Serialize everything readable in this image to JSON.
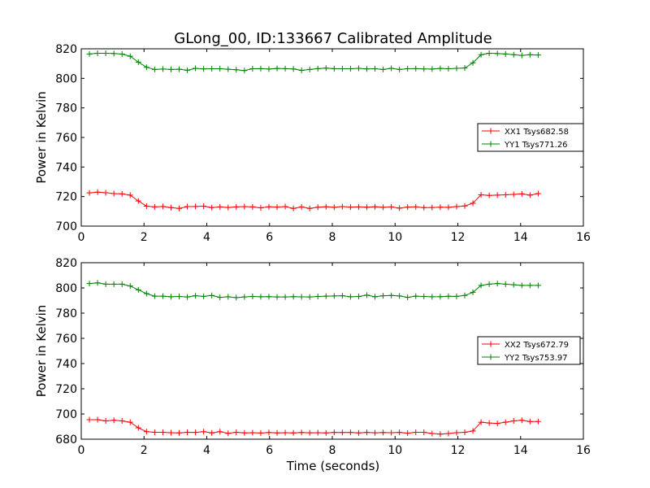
{
  "figure": {
    "title": "GLong_00, ID:133667 Calibrated Amplitude",
    "xlabel": "Time (seconds)"
  },
  "chart_data": [
    {
      "type": "line",
      "ylabel": "Power in Kelvin",
      "xlabel": "",
      "xlim": [
        0,
        16
      ],
      "ylim": [
        700,
        820
      ],
      "xticks": [
        0,
        2,
        4,
        6,
        8,
        10,
        12,
        14,
        16
      ],
      "yticks": [
        700,
        720,
        740,
        760,
        780,
        800,
        820
      ],
      "legend_position": "center-right",
      "x": [
        0.26,
        0.52,
        0.78,
        1.04,
        1.3,
        1.56,
        1.82,
        2.08,
        2.34,
        2.6,
        2.86,
        3.12,
        3.38,
        3.64,
        3.9,
        4.16,
        4.42,
        4.68,
        4.94,
        5.2,
        5.46,
        5.72,
        5.98,
        6.24,
        6.5,
        6.76,
        7.02,
        7.28,
        7.54,
        7.8,
        8.06,
        8.32,
        8.58,
        8.84,
        9.1,
        9.36,
        9.62,
        9.88,
        10.14,
        10.4,
        10.66,
        10.92,
        11.18,
        11.44,
        11.7,
        11.96,
        12.22,
        12.48,
        12.74,
        13.0,
        13.26,
        13.52,
        13.78,
        14.04,
        14.3,
        14.56
      ],
      "series": [
        {
          "name": "XX1 Tsys682.58",
          "color": "#ff0000",
          "values": [
            722.5,
            723.0,
            722.6,
            722.0,
            721.8,
            721.0,
            717.0,
            713.5,
            713.0,
            713.3,
            712.5,
            712.0,
            713.2,
            713.3,
            713.5,
            712.5,
            713.0,
            712.6,
            713.0,
            713.2,
            713.0,
            712.4,
            713.1,
            712.9,
            713.2,
            712.0,
            713.0,
            712.0,
            712.8,
            713.1,
            712.7,
            713.2,
            712.9,
            713.0,
            712.8,
            713.1,
            712.7,
            713.0,
            712.2,
            712.9,
            713.0,
            712.5,
            712.6,
            712.8,
            712.7,
            713.2,
            713.6,
            715.5,
            721.2,
            720.8,
            721.0,
            721.2,
            721.5,
            721.8,
            721.0,
            722.0
          ]
        },
        {
          "name": "YY1 Tsys771.26",
          "color": "#008000",
          "values": [
            816.5,
            817.0,
            817.0,
            816.8,
            816.4,
            815.0,
            811.0,
            807.5,
            806.0,
            806.3,
            806.0,
            806.2,
            805.5,
            806.8,
            806.4,
            806.5,
            806.5,
            806.2,
            805.8,
            805.3,
            806.5,
            806.6,
            806.3,
            806.7,
            806.6,
            806.4,
            805.4,
            806.0,
            806.6,
            806.9,
            806.6,
            806.5,
            806.5,
            806.8,
            806.4,
            806.5,
            806.0,
            806.8,
            806.0,
            806.5,
            806.6,
            806.4,
            806.3,
            806.7,
            806.5,
            806.8,
            807.0,
            810.5,
            816.0,
            817.0,
            816.8,
            816.5,
            816.0,
            815.5,
            816.0,
            815.8
          ]
        }
      ]
    },
    {
      "type": "line",
      "ylabel": "Power in Kelvin",
      "xlabel": "Time (seconds)",
      "xlim": [
        0,
        16
      ],
      "ylim": [
        680,
        820
      ],
      "xticks": [
        0,
        2,
        4,
        6,
        8,
        10,
        12,
        14,
        16
      ],
      "yticks": [
        680,
        700,
        720,
        740,
        760,
        780,
        800,
        820
      ],
      "legend_position": "center-right",
      "x": [
        0.26,
        0.52,
        0.78,
        1.04,
        1.3,
        1.56,
        1.82,
        2.08,
        2.34,
        2.6,
        2.86,
        3.12,
        3.38,
        3.64,
        3.9,
        4.16,
        4.42,
        4.68,
        4.94,
        5.2,
        5.46,
        5.72,
        5.98,
        6.24,
        6.5,
        6.76,
        7.02,
        7.28,
        7.54,
        7.8,
        8.06,
        8.32,
        8.58,
        8.84,
        9.1,
        9.36,
        9.62,
        9.88,
        10.14,
        10.4,
        10.66,
        10.92,
        11.18,
        11.44,
        11.7,
        11.96,
        12.22,
        12.48,
        12.74,
        13.0,
        13.26,
        13.52,
        13.78,
        14.04,
        14.3,
        14.56
      ],
      "series": [
        {
          "name": "XX2 Tsys672.79",
          "color": "#ff0000",
          "values": [
            695.5,
            695.5,
            694.5,
            695.0,
            694.5,
            693.5,
            689.0,
            686.0,
            685.5,
            685.5,
            685.2,
            685.0,
            685.5,
            685.4,
            686.0,
            685.0,
            686.0,
            684.7,
            685.5,
            685.0,
            685.2,
            684.9,
            685.3,
            685.0,
            685.2,
            685.0,
            685.3,
            685.1,
            685.2,
            685.0,
            685.4,
            685.3,
            685.4,
            685.0,
            685.4,
            685.1,
            685.3,
            685.2,
            685.4,
            684.8,
            685.5,
            685.5,
            684.5,
            684.0,
            684.5,
            685.2,
            685.5,
            686.5,
            693.5,
            692.8,
            692.5,
            693.5,
            694.5,
            695.0,
            694.0,
            694.0
          ]
        },
        {
          "name": "YY2 Tsys753.97",
          "color": "#008000",
          "values": [
            803.5,
            804.0,
            803.0,
            803.0,
            803.0,
            801.5,
            798.5,
            795.5,
            793.5,
            793.5,
            793.0,
            793.2,
            792.8,
            793.8,
            793.3,
            794.0,
            792.5,
            793.0,
            792.3,
            792.8,
            793.2,
            793.0,
            793.1,
            792.8,
            792.8,
            793.1,
            792.9,
            792.8,
            793.2,
            793.5,
            793.6,
            793.8,
            793.0,
            793.2,
            794.3,
            793.0,
            793.8,
            794.0,
            793.6,
            792.5,
            793.5,
            793.2,
            793.0,
            793.1,
            793.4,
            793.3,
            794.0,
            796.5,
            802.0,
            803.0,
            803.5,
            803.0,
            802.5,
            802.0,
            802.0,
            802.0
          ]
        }
      ]
    }
  ]
}
